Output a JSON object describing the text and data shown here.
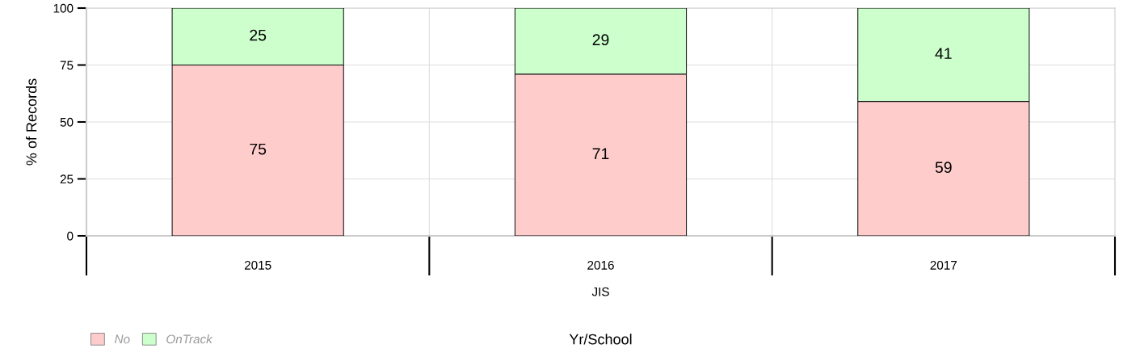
{
  "chart_data": {
    "type": "bar",
    "stacked": true,
    "xlabel": "Yr/School",
    "ylabel": "% of Records",
    "categories": [
      "2015",
      "2016",
      "2017"
    ],
    "series": [
      {
        "name": "No",
        "color": "#ffcccc",
        "values": [
          75,
          71,
          59
        ]
      },
      {
        "name": "OnTrack",
        "color": "#ccffcc",
        "values": [
          25,
          29,
          41
        ]
      }
    ],
    "annotations": [
      "JIS"
    ],
    "ylim": [
      0,
      100
    ],
    "yticks": [
      0,
      25,
      50,
      75,
      100
    ],
    "grid": true,
    "data_labels": true,
    "legend": "bottom left"
  }
}
